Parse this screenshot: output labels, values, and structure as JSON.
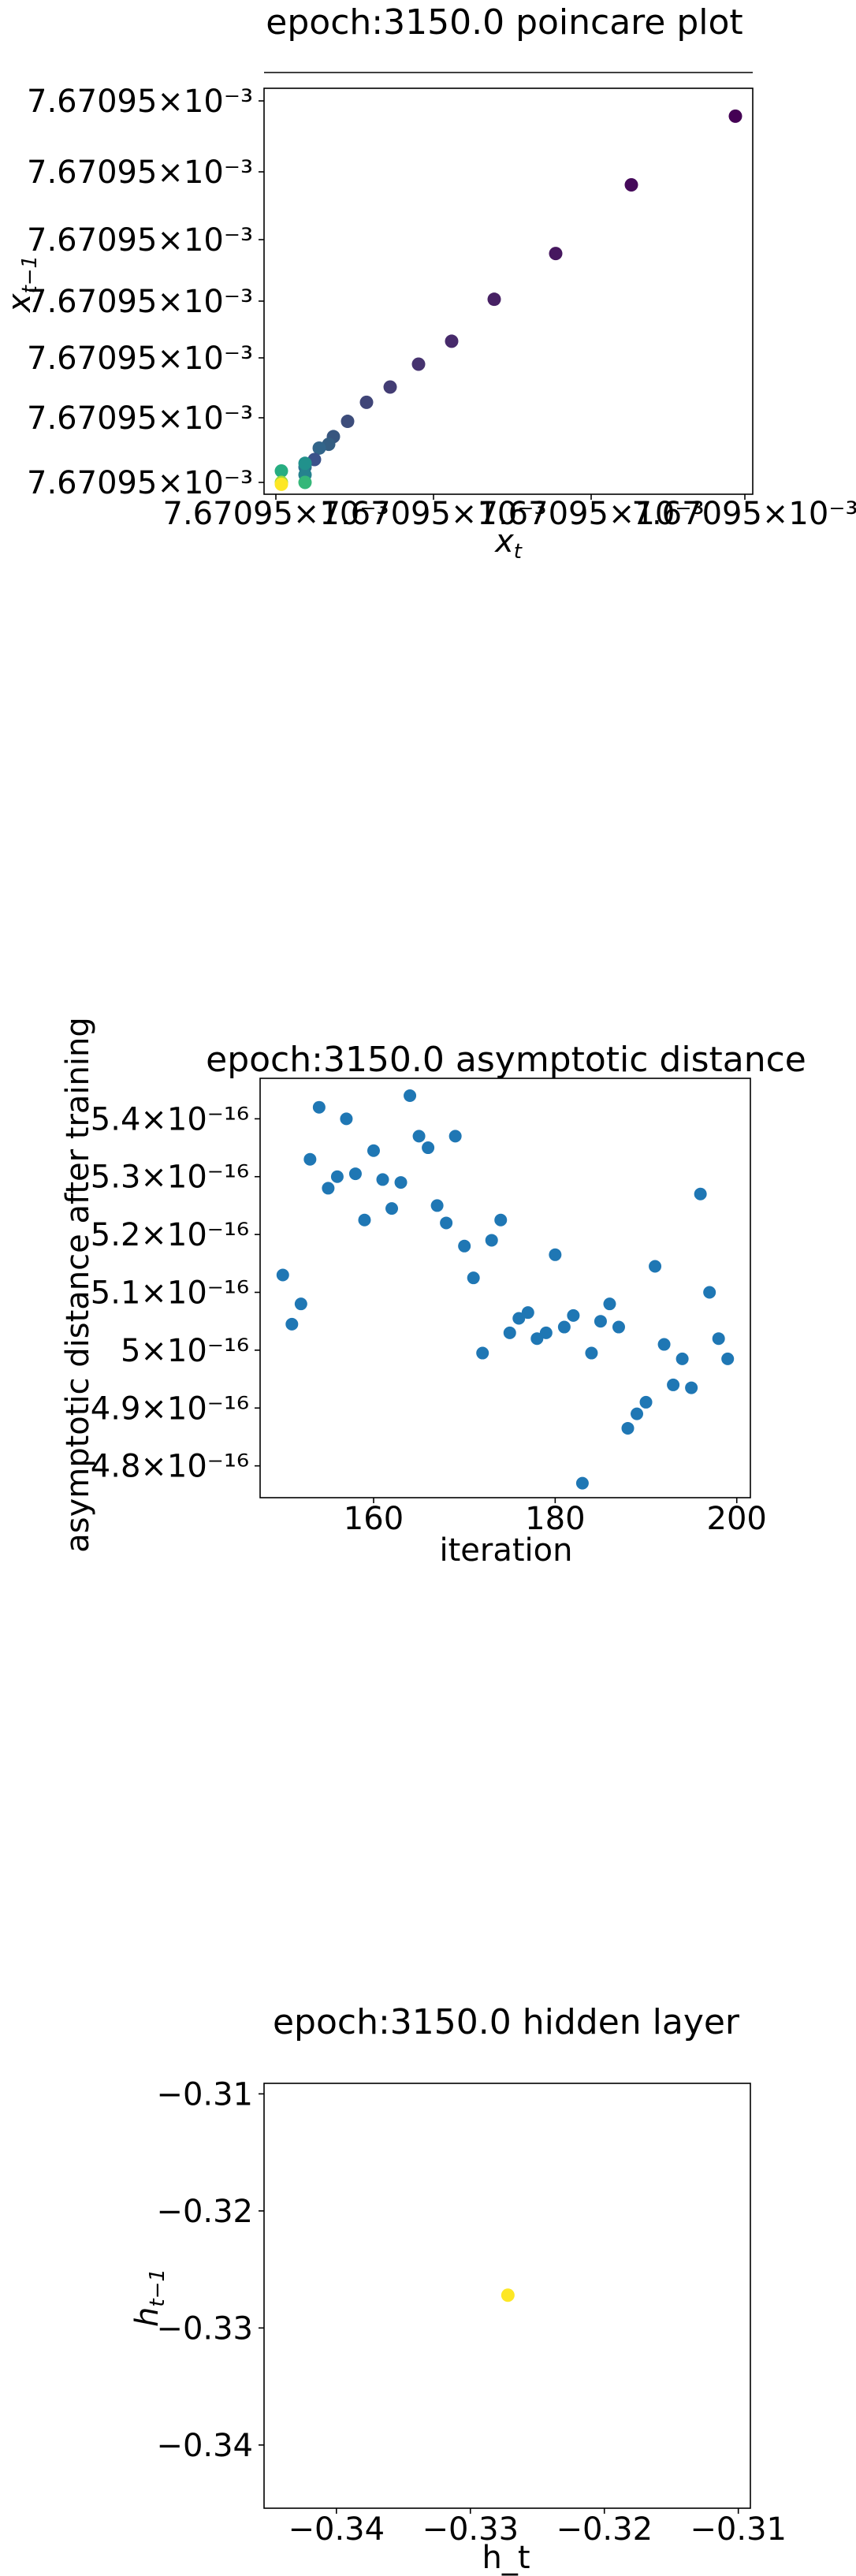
{
  "chart_data": [
    {
      "type": "scatter",
      "title": "epoch:3150.0 poincare plot",
      "xlabel": "x_t",
      "ylabel": "x_{t-1}",
      "axis_offset_label": "",
      "xticks": [
        "7.67095×10⁻³",
        "7.67095×10⁻³",
        "7.67095×10⁻³",
        "7.67095×10⁻³"
      ],
      "yticks": [
        "7.67095×10⁻³",
        "7.67095×10⁻³",
        "7.67095×10⁻³",
        "7.67095×10⁻³",
        "7.67095×10⁻³",
        "7.67095×10⁻³",
        "7.67095×10⁻³"
      ],
      "xlim": [
        0.0,
        1.0
      ],
      "ylim": [
        0.0,
        1.0
      ],
      "points": [
        {
          "x": 0.98,
          "y": 0.96,
          "color": "#440154"
        },
        {
          "x": 0.76,
          "y": 0.78,
          "color": "#450a5a"
        },
        {
          "x": 0.6,
          "y": 0.6,
          "color": "#46175f"
        },
        {
          "x": 0.47,
          "y": 0.48,
          "color": "#472164"
        },
        {
          "x": 0.38,
          "y": 0.37,
          "color": "#472a6b"
        },
        {
          "x": 0.31,
          "y": 0.31,
          "color": "#46336f"
        },
        {
          "x": 0.25,
          "y": 0.25,
          "color": "#433d74"
        },
        {
          "x": 0.2,
          "y": 0.21,
          "color": "#404578"
        },
        {
          "x": 0.16,
          "y": 0.16,
          "color": "#3d4d7b"
        },
        {
          "x": 0.13,
          "y": 0.12,
          "color": "#38567f"
        },
        {
          "x": 0.12,
          "y": 0.1,
          "color": "#355e82"
        },
        {
          "x": 0.1,
          "y": 0.09,
          "color": "#32658a"
        },
        {
          "x": 0.09,
          "y": 0.06,
          "color": "#3b528b"
        },
        {
          "x": 0.07,
          "y": 0.04,
          "color": "#2c728e"
        },
        {
          "x": 0.07,
          "y": 0.02,
          "color": "#26828e"
        },
        {
          "x": 0.07,
          "y": 0.05,
          "color": "#21918c"
        },
        {
          "x": 0.02,
          "y": 0.03,
          "color": "#27ad81"
        },
        {
          "x": 0.07,
          "y": 0.0,
          "color": "#35b779"
        },
        {
          "x": 0.02,
          "y": 0.0,
          "color": "#a0da39"
        },
        {
          "x": 0.02,
          "y": -0.005,
          "color": "#fde725"
        }
      ]
    },
    {
      "type": "scatter",
      "title": "epoch:3150.0 asymptotic distance",
      "xlabel": "iteration",
      "ylabel": "asymptotic distance after training",
      "xticks": [
        "160",
        "180",
        "200"
      ],
      "xtick_values": [
        160,
        180,
        200
      ],
      "yticks": [
        "5.4×10⁻¹⁶",
        "5.3×10⁻¹⁶",
        "5.2×10⁻¹⁶",
        "5.1×10⁻¹⁶",
        "5×10⁻¹⁶",
        "4.9×10⁻¹⁶",
        "4.8×10⁻¹⁶"
      ],
      "ytick_values": [
        5.4,
        5.3,
        5.2,
        5.1,
        5.0,
        4.9,
        4.8
      ],
      "y_unit": "×10⁻¹⁶",
      "xlim": [
        147.5,
        201.5
      ],
      "ylim": [
        4.745,
        5.47
      ],
      "color": "#1f77b4",
      "x": [
        150,
        151,
        152,
        153,
        154,
        155,
        156,
        157,
        158,
        159,
        160,
        161,
        162,
        163,
        164,
        165,
        166,
        167,
        168,
        169,
        170,
        171,
        172,
        173,
        174,
        175,
        176,
        177,
        178,
        179,
        180,
        181,
        182,
        183,
        184,
        185,
        186,
        187,
        188,
        189,
        190,
        191,
        192,
        193,
        194,
        195,
        196,
        197,
        198,
        199
      ],
      "y": [
        5.13,
        5.045,
        5.08,
        5.33,
        5.42,
        5.28,
        5.3,
        5.4,
        5.305,
        5.225,
        5.345,
        5.295,
        5.245,
        5.29,
        5.44,
        5.37,
        5.35,
        5.25,
        5.22,
        5.37,
        5.18,
        5.125,
        4.995,
        5.19,
        5.225,
        5.03,
        5.055,
        5.065,
        5.02,
        5.03,
        5.165,
        5.04,
        5.06,
        4.77,
        4.995,
        5.05,
        5.08,
        5.04,
        4.865,
        4.89,
        4.91,
        5.145,
        5.01,
        4.94,
        4.985,
        4.935,
        5.27,
        5.1,
        5.02,
        4.985
      ]
    },
    {
      "type": "scatter",
      "title": "epoch:3150.0 hidden layer",
      "xlabel": "h_t",
      "ylabel": "h_{t-1}",
      "xticks": [
        "−0.34",
        "−0.33",
        "−0.32",
        "−0.31"
      ],
      "xtick_values": [
        -0.34,
        -0.33,
        -0.32,
        -0.31
      ],
      "yticks": [
        "−0.31",
        "−0.32",
        "−0.33",
        "−0.34"
      ],
      "ytick_values": [
        -0.31,
        -0.32,
        -0.33,
        -0.34
      ],
      "xlim": [
        -0.3454,
        -0.3091
      ],
      "ylim": [
        -0.3454,
        -0.3091
      ],
      "points": [
        {
          "x": -0.3272,
          "y": -0.3272,
          "color": "#fde725"
        }
      ]
    }
  ]
}
